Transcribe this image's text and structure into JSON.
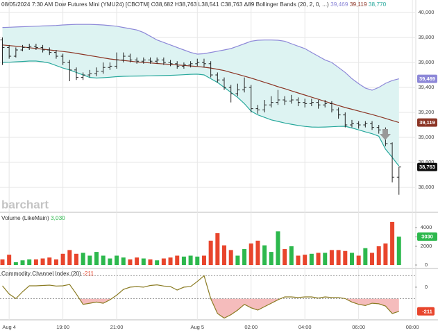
{
  "chart_data": [
    {
      "type": "ohlc",
      "title": "08/05/2024 7:30 AM Dow Futures Mini (YMU24) [CBOTM] O38,682 H38,763 L38,541 C38,763 Δ89 Bollinger Bands (20, 2, 0, ...)",
      "watermark": "barchart",
      "color": "#222222",
      "band_fill": "#ddf3f2",
      "grid": true,
      "close_label": "38,763",
      "close_color": "#111111",
      "x": [
        16.75,
        17,
        17.25,
        17.5,
        17.75,
        18,
        18.25,
        18.5,
        18.75,
        19,
        19.25,
        19.5,
        19.75,
        20,
        20.25,
        20.5,
        20.75,
        21,
        21.25,
        21.5,
        21.75,
        22,
        22.25,
        22.5,
        22.75,
        23,
        23.25,
        23.5,
        23.75,
        24,
        24.25,
        24.5,
        24.75,
        25,
        25.25,
        25.5,
        25.75,
        26,
        26.25,
        26.5,
        26.75,
        27,
        27.25,
        27.5,
        27.75,
        28,
        28.25,
        28.5,
        28.75,
        29,
        29.25,
        29.5,
        29.75,
        30,
        30.25,
        30.5,
        30.75,
        31,
        31.25,
        31.5
      ],
      "open": [
        39780,
        39720,
        39650,
        39700,
        39720,
        39730,
        39720,
        39700,
        39680,
        39650,
        39600,
        39540,
        39480,
        39500,
        39510,
        39530,
        39560,
        39570,
        39620,
        39650,
        39620,
        39610,
        39620,
        39610,
        39620,
        39600,
        39590,
        39570,
        39580,
        39590,
        39600,
        39590,
        39500,
        39460,
        39400,
        39350,
        39380,
        39400,
        39230,
        39220,
        39260,
        39280,
        39300,
        39290,
        39300,
        39280,
        39270,
        39280,
        39260,
        39270,
        39220,
        39180,
        39100,
        39110,
        39100,
        39110,
        39080,
        39060,
        38950,
        38682
      ],
      "high": [
        39800,
        39740,
        39720,
        39740,
        39750,
        39750,
        39740,
        39720,
        39700,
        39670,
        39620,
        39560,
        39520,
        39540,
        39560,
        39600,
        39600,
        39680,
        39680,
        39670,
        39640,
        39640,
        39640,
        39640,
        39640,
        39620,
        39610,
        39600,
        39610,
        39630,
        39630,
        39610,
        39520,
        39480,
        39420,
        39430,
        39480,
        39420,
        39260,
        39300,
        39330,
        39380,
        39330,
        39340,
        39320,
        39310,
        39310,
        39300,
        39300,
        39290,
        39240,
        39200,
        39140,
        39130,
        39130,
        39130,
        39100,
        39080,
        38960,
        38763
      ],
      "low": [
        39580,
        39630,
        39640,
        39690,
        39700,
        39700,
        39680,
        39660,
        39630,
        39580,
        39450,
        39460,
        39460,
        39480,
        39490,
        39510,
        39540,
        39550,
        39600,
        39600,
        39590,
        39590,
        39590,
        39590,
        39580,
        39570,
        39550,
        39550,
        39560,
        39570,
        39560,
        39480,
        39440,
        39380,
        39280,
        39330,
        39360,
        39200,
        39190,
        39200,
        39240,
        39260,
        39260,
        39270,
        39250,
        39240,
        39250,
        39230,
        39240,
        39200,
        39150,
        39080,
        39080,
        39070,
        39080,
        39060,
        39030,
        38930,
        38640,
        38541
      ],
      "close": [
        39720,
        39650,
        39700,
        39720,
        39730,
        39720,
        39700,
        39680,
        39650,
        39600,
        39540,
        39480,
        39500,
        39510,
        39530,
        39560,
        39570,
        39620,
        39650,
        39620,
        39610,
        39620,
        39610,
        39620,
        39600,
        39590,
        39570,
        39580,
        39590,
        39600,
        39590,
        39500,
        39460,
        39400,
        39350,
        39380,
        39400,
        39230,
        39220,
        39260,
        39280,
        39300,
        39290,
        39300,
        39280,
        39270,
        39280,
        39260,
        39270,
        39220,
        39180,
        39100,
        39110,
        39100,
        39110,
        39080,
        39060,
        38950,
        38682,
        38763
      ],
      "series": [
        {
          "color": "#8d88d8",
          "label": "39,469",
          "badge": true,
          "values": [
            39880,
            39882,
            39884,
            39886,
            39888,
            39890,
            39892,
            39894,
            39896,
            39900,
            39903,
            39905,
            39905,
            39905,
            39903,
            39900,
            39895,
            39890,
            39880,
            39870,
            39860,
            39840,
            39810,
            39780,
            39760,
            39740,
            39720,
            39700,
            39680,
            39667,
            39670,
            39680,
            39690,
            39700,
            39711,
            39730,
            39750,
            39770,
            39778,
            39780,
            39780,
            39778,
            39770,
            39750,
            39730,
            39711,
            39680,
            39650,
            39620,
            39600,
            39560,
            39520,
            39470,
            39430,
            39395,
            39378,
            39400,
            39433,
            39455,
            39469
          ]
        },
        {
          "color": "#8b3424",
          "label": "39,119",
          "badge": true,
          "values": [
            39740,
            39735,
            39730,
            39724,
            39718,
            39712,
            39706,
            39700,
            39694,
            39688,
            39682,
            39673,
            39664,
            39655,
            39646,
            39637,
            39628,
            39622,
            39616,
            39610,
            39604,
            39600,
            39596,
            39592,
            39588,
            39584,
            39580,
            39576,
            39572,
            39568,
            39562,
            39555,
            39545,
            39535,
            39520,
            39505,
            39490,
            39475,
            39458,
            39441,
            39424,
            39406,
            39390,
            39373,
            39356,
            39339,
            39322,
            39305,
            39288,
            39272,
            39255,
            39239,
            39225,
            39211,
            39197,
            39183,
            39168,
            39152,
            39135,
            39119
          ]
        },
        {
          "color": "#27a89c",
          "label": "38,770",
          "badge": false,
          "values": [
            39600,
            39602,
            39605,
            39608,
            39611,
            39611,
            39605,
            39595,
            39575,
            39555,
            39540,
            39520,
            39500,
            39480,
            39475,
            39478,
            39482,
            39486,
            39489,
            39490,
            39491,
            39492,
            39493,
            39494,
            39495,
            39497,
            39499,
            39502,
            39505,
            39506,
            39500,
            39470,
            39440,
            39400,
            39360,
            39320,
            39270,
            39210,
            39180,
            39160,
            39140,
            39128,
            39115,
            39105,
            39095,
            39088,
            39083,
            39082,
            39083,
            39085,
            39088,
            39089,
            39075,
            39060,
            39044,
            39030,
            39010,
            38906,
            38840,
            38770
          ]
        }
      ],
      "xlim": [
        16.66,
        32.1
      ],
      "xticks": [
        {
          "value": 17,
          "label": "Aug 4"
        },
        {
          "value": 19,
          "label": "19:00"
        },
        {
          "value": 21,
          "label": "21:00"
        },
        {
          "value": 24,
          "label": "Aug 5"
        },
        {
          "value": 26,
          "label": "02:00"
        },
        {
          "value": 28,
          "label": "04:00"
        },
        {
          "value": 30,
          "label": "06:00"
        },
        {
          "value": 32,
          "label": "08:00"
        }
      ],
      "ylim": [
        38406,
        40100
      ],
      "yticks": [
        {
          "value": 40000,
          "label": "40,000"
        },
        {
          "value": 39800,
          "label": "39,800"
        },
        {
          "value": 39600,
          "label": "39,600"
        },
        {
          "value": 39400,
          "label": "39,400"
        },
        {
          "value": 39200,
          "label": "39,200"
        },
        {
          "value": 39000,
          "label": "39,000"
        },
        {
          "value": 38800,
          "label": "38,800"
        },
        {
          "value": 38600,
          "label": "38,600"
        }
      ]
    },
    {
      "type": "bar",
      "title": "Volume (LikeMain)",
      "last_label": "3,030",
      "up_color": "#2db84d",
      "down_color": "#e8452c",
      "grid": false,
      "values": [
        600,
        1100,
        300,
        500,
        600,
        600,
        700,
        800,
        600,
        1200,
        1600,
        1200,
        1300,
        1000,
        1400,
        1000,
        700,
        1000,
        800,
        600,
        800,
        700,
        600,
        500,
        700,
        800,
        1000,
        900,
        1000,
        900,
        1000,
        2600,
        3400,
        2100,
        1600,
        1000,
        1700,
        2300,
        2600,
        2100,
        1400,
        3600,
        1700,
        2000,
        1000,
        1100,
        1200,
        1300,
        1300,
        1600,
        1600,
        1500,
        1300,
        1000,
        1800,
        1300,
        2000,
        2300,
        4600,
        3030
      ],
      "ylim": [
        0,
        5480
      ],
      "yticks": [
        4000,
        3000,
        2000,
        0
      ]
    },
    {
      "type": "line",
      "title": "Commodity Channel Index (20)",
      "color": "#8a7b22",
      "fill": "#f5bcbc",
      "badge_color": "#e8452c",
      "grid": false,
      "levels": [
        100,
        -100
      ],
      "values": [
        12,
        -60,
        -100,
        -40,
        12,
        12,
        15,
        18,
        10,
        12,
        24,
        -60,
        -150,
        -140,
        -130,
        -140,
        -110,
        -70,
        -20,
        0,
        5,
        0,
        15,
        20,
        10,
        5,
        -25,
        0,
        5,
        50,
        100,
        -100,
        -230,
        -270,
        -240,
        -200,
        -150,
        -180,
        -200,
        -170,
        -140,
        -110,
        -85,
        -85,
        -90,
        -85,
        -85,
        -95,
        -85,
        -90,
        -90,
        -100,
        -130,
        -150,
        -160,
        -140,
        -145,
        -165,
        -230,
        -211
      ],
      "ylim": [
        -279,
        145
      ],
      "yticks": [
        0
      ]
    }
  ]
}
